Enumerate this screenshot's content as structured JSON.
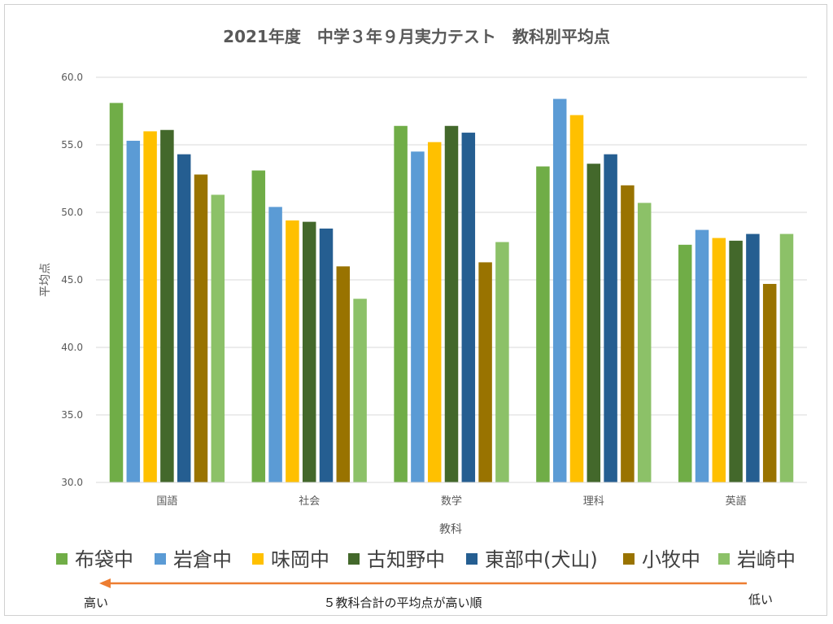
{
  "chart_data": {
    "type": "bar",
    "title": "2021年度　中学３年９月実力テスト　教科別平均点",
    "xlabel": "教科",
    "ylabel": "平均点",
    "ylim": [
      30.0,
      60.0
    ],
    "yticks": [
      "30.0",
      "35.0",
      "40.0",
      "45.0",
      "50.0",
      "55.0",
      "60.0"
    ],
    "categories": [
      "国語",
      "社会",
      "数学",
      "理科",
      "英語"
    ],
    "grid": true,
    "legend_position": "bottom",
    "series": [
      {
        "name": "布袋中",
        "color": "#70ad47",
        "values": [
          58.1,
          53.1,
          56.4,
          53.4,
          47.6
        ]
      },
      {
        "name": "岩倉中",
        "color": "#5b9bd5",
        "values": [
          55.3,
          50.4,
          54.5,
          58.4,
          48.7
        ]
      },
      {
        "name": "味岡中",
        "color": "#ffc000",
        "values": [
          56.0,
          49.4,
          55.2,
          57.2,
          48.1
        ]
      },
      {
        "name": "古知野中",
        "color": "#43682b",
        "values": [
          56.1,
          49.3,
          56.4,
          53.6,
          47.9
        ]
      },
      {
        "name": "東部中(犬山)",
        "color": "#255e91",
        "values": [
          54.3,
          48.8,
          55.9,
          54.3,
          48.4
        ]
      },
      {
        "name": "小牧中",
        "color": "#997300",
        "values": [
          52.8,
          46.0,
          46.3,
          52.0,
          44.7
        ]
      },
      {
        "name": "岩崎中",
        "color": "#8cc168",
        "values": [
          51.3,
          43.6,
          47.8,
          50.7,
          48.4
        ]
      }
    ],
    "annotation": {
      "left": "高い",
      "center": "５教科合計の平均点が高い順",
      "right": "低い",
      "arrow_color": "#ed7d31"
    }
  }
}
